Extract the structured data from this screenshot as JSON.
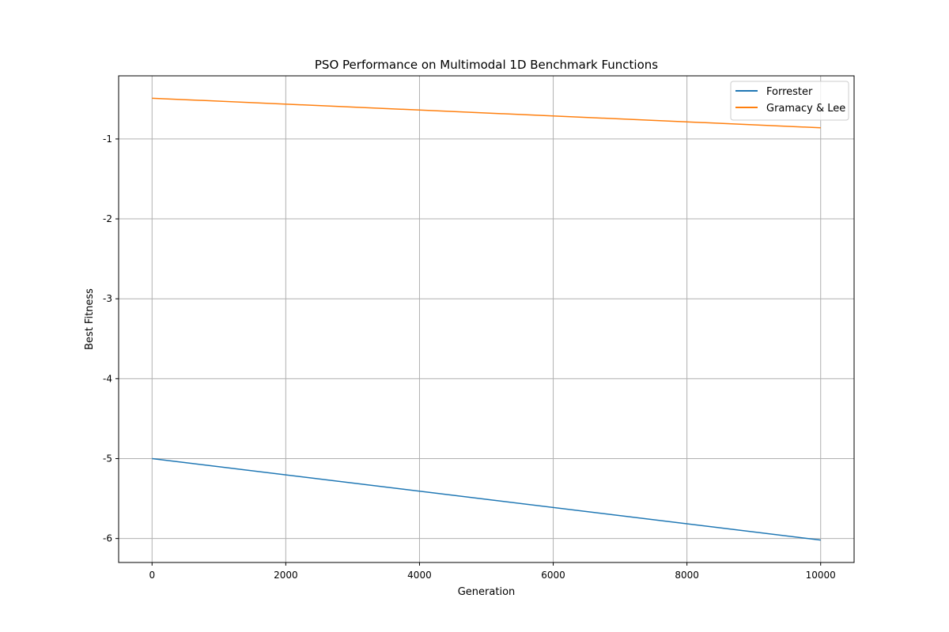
{
  "chart_data": {
    "type": "line",
    "title": "PSO Performance on Multimodal 1D Benchmark Functions",
    "xlabel": "Generation",
    "ylabel": "Best Fitness",
    "xlim": [
      -500,
      10500
    ],
    "ylim": [
      -6.3,
      -0.21
    ],
    "xticks": [
      0,
      2000,
      4000,
      6000,
      8000,
      10000
    ],
    "xtick_labels": [
      "0",
      "2000",
      "4000",
      "6000",
      "8000",
      "10000"
    ],
    "yticks": [
      -6,
      -5,
      -4,
      -3,
      -2,
      -1
    ],
    "ytick_labels": [
      "-6",
      "-5",
      "-4",
      "-3",
      "-2",
      "-1"
    ],
    "grid": true,
    "legend": "top-right",
    "series": [
      {
        "name": "Forrester",
        "color": "#1f77b4",
        "x": [
          0,
          10000
        ],
        "y": [
          -5.0,
          -6.02
        ]
      },
      {
        "name": "Gramacy & Lee",
        "color": "#ff7f0e",
        "x": [
          0,
          10000
        ],
        "y": [
          -0.49,
          -0.86
        ]
      }
    ]
  }
}
